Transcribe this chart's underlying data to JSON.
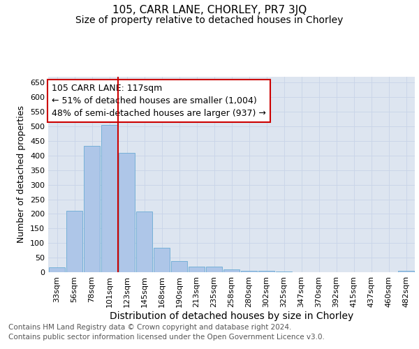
{
  "title": "105, CARR LANE, CHORLEY, PR7 3JQ",
  "subtitle": "Size of property relative to detached houses in Chorley",
  "xlabel": "Distribution of detached houses by size in Chorley",
  "ylabel": "Number of detached properties",
  "categories": [
    "33sqm",
    "56sqm",
    "78sqm",
    "101sqm",
    "123sqm",
    "145sqm",
    "168sqm",
    "190sqm",
    "213sqm",
    "235sqm",
    "258sqm",
    "280sqm",
    "302sqm",
    "325sqm",
    "347sqm",
    "370sqm",
    "392sqm",
    "415sqm",
    "437sqm",
    "460sqm",
    "482sqm"
  ],
  "values": [
    17,
    211,
    433,
    505,
    410,
    208,
    83,
    39,
    20,
    18,
    10,
    5,
    4,
    2,
    1,
    1,
    0,
    0,
    0,
    0,
    5
  ],
  "bar_color": "#aec6e8",
  "bar_edge_color": "#6aaad4",
  "vline_x": 4,
  "vline_color": "#cc0000",
  "annotation_line1": "105 CARR LANE: 117sqm",
  "annotation_line2": "← 51% of detached houses are smaller (1,004)",
  "annotation_line3": "48% of semi-detached houses are larger (937) →",
  "annotation_box_color": "#ffffff",
  "annotation_box_edge": "#cc0000",
  "grid_color": "#c8d4e8",
  "background_color": "#dde5f0",
  "ylim": [
    0,
    670
  ],
  "yticks": [
    0,
    50,
    100,
    150,
    200,
    250,
    300,
    350,
    400,
    450,
    500,
    550,
    600,
    650
  ],
  "footer": "Contains HM Land Registry data © Crown copyright and database right 2024.\nContains public sector information licensed under the Open Government Licence v3.0.",
  "title_fontsize": 11,
  "subtitle_fontsize": 10,
  "xlabel_fontsize": 10,
  "ylabel_fontsize": 9,
  "tick_fontsize": 8,
  "annotation_fontsize": 9,
  "footer_fontsize": 7.5
}
